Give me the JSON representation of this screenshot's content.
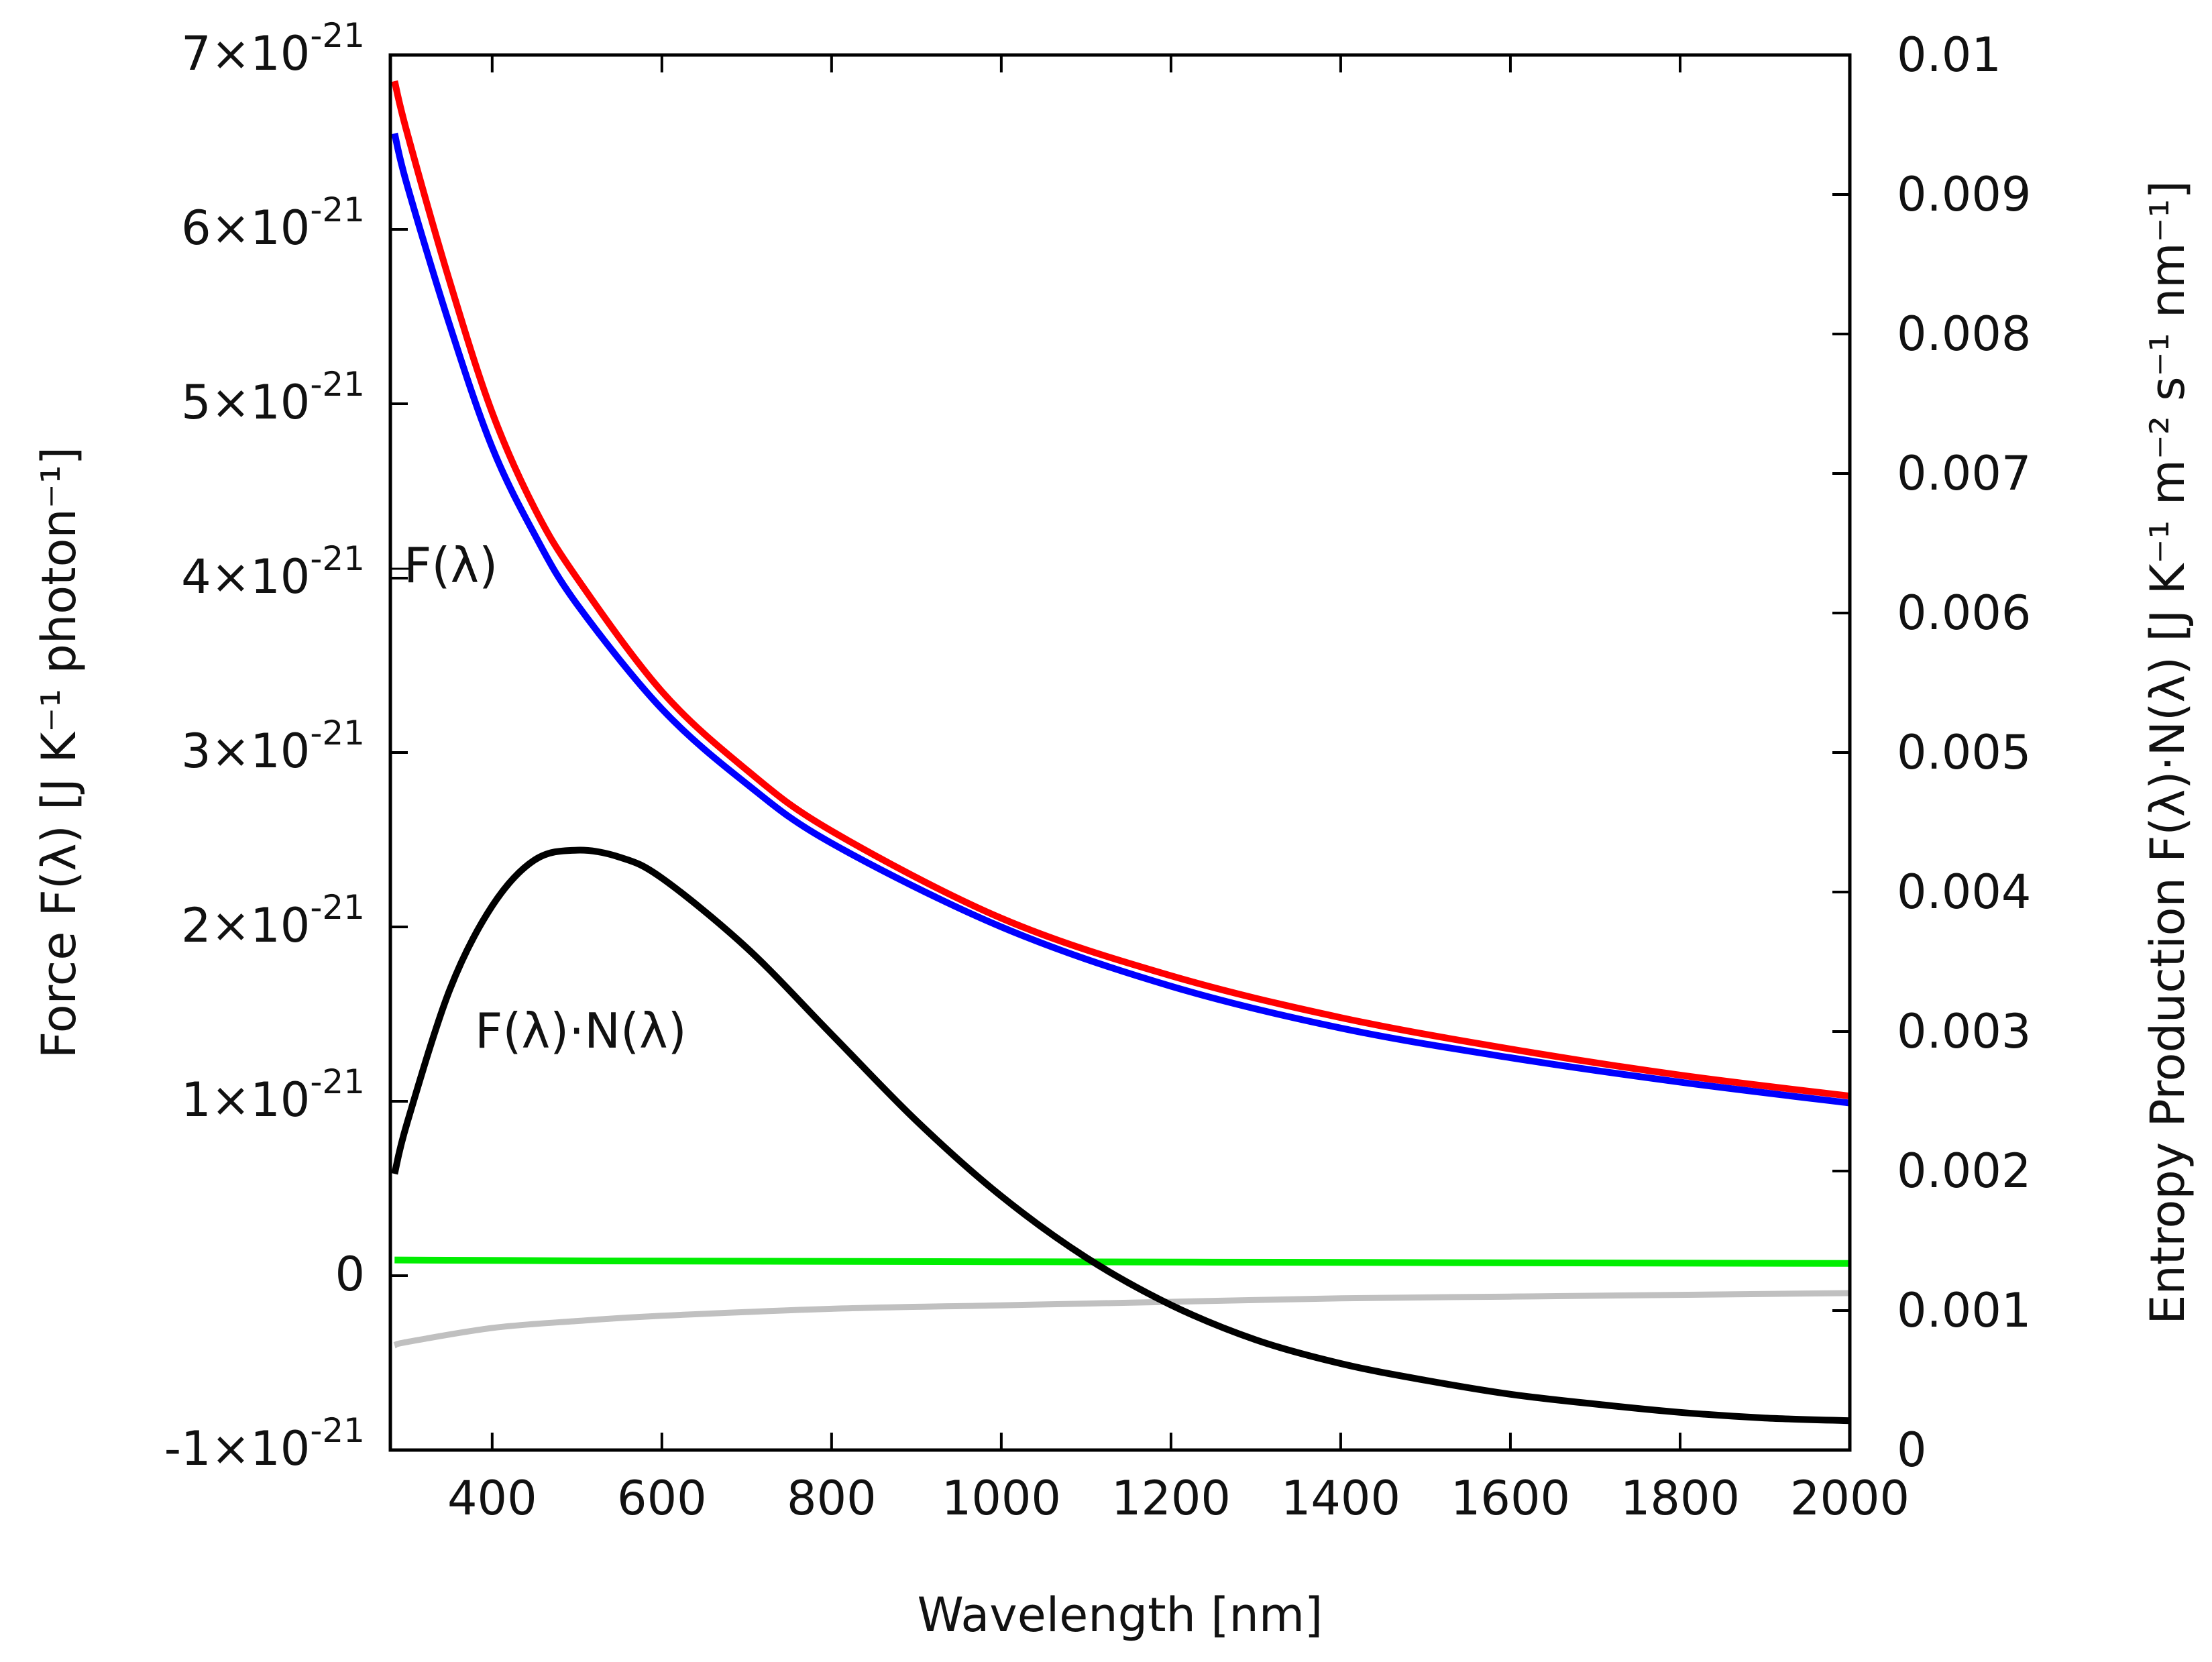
{
  "chart_data": {
    "type": "line",
    "title": "",
    "xlabel": "Wavelength [nm]",
    "ylabel_left": "Force F(λ) [J K⁻¹ photon⁻¹]",
    "ylabel_right": "Entropy Production F(λ)·N(λ) [J K⁻¹ m⁻² s⁻¹ nm⁻¹]",
    "xlim": [
      280,
      2000
    ],
    "ylim_left": [
      -1e-21,
      7e-21
    ],
    "ylim_right": [
      0,
      0.01
    ],
    "grid": false,
    "x_ticks": [
      {
        "value": 400,
        "label": "400"
      },
      {
        "value": 600,
        "label": "600"
      },
      {
        "value": 800,
        "label": "800"
      },
      {
        "value": 1000,
        "label": "1000"
      },
      {
        "value": 1200,
        "label": "1200"
      },
      {
        "value": 1400,
        "label": "1400"
      },
      {
        "value": 1600,
        "label": "1600"
      },
      {
        "value": 1800,
        "label": "1800"
      },
      {
        "value": 2000,
        "label": "2000"
      }
    ],
    "y_ticks_left": [
      {
        "value": -1e-21,
        "mantissa": "-1×10",
        "exp": "-21"
      },
      {
        "value": 0,
        "mantissa": "0",
        "exp": ""
      },
      {
        "value": 1e-21,
        "mantissa": "1×10",
        "exp": "-21"
      },
      {
        "value": 2e-21,
        "mantissa": "2×10",
        "exp": "-21"
      },
      {
        "value": 3e-21,
        "mantissa": "3×10",
        "exp": "-21"
      },
      {
        "value": 4e-21,
        "mantissa": "4×10",
        "exp": "-21"
      },
      {
        "value": 5e-21,
        "mantissa": "5×10",
        "exp": "-21"
      },
      {
        "value": 6e-21,
        "mantissa": "6×10",
        "exp": "-21"
      },
      {
        "value": 7e-21,
        "mantissa": "7×10",
        "exp": "-21"
      }
    ],
    "y_ticks_right": [
      {
        "value": 0,
        "label": "0"
      },
      {
        "value": 0.001,
        "label": "0.001"
      },
      {
        "value": 0.002,
        "label": "0.002"
      },
      {
        "value": 0.003,
        "label": "0.003"
      },
      {
        "value": 0.004,
        "label": "0.004"
      },
      {
        "value": 0.005,
        "label": "0.005"
      },
      {
        "value": 0.006,
        "label": "0.006"
      },
      {
        "value": 0.007,
        "label": "0.007"
      },
      {
        "value": 0.008,
        "label": "0.008"
      },
      {
        "value": 0.009,
        "label": "0.009"
      },
      {
        "value": 0.01,
        "label": "0.01"
      }
    ],
    "series": [
      {
        "name": "red",
        "axis": "left",
        "color": "#ff0000",
        "x": [
          285,
          300,
          350,
          400,
          450,
          500,
          600,
          700,
          800,
          1000,
          1200,
          1400,
          1600,
          1800,
          2000
        ],
        "y": [
          6.85e-21,
          6.55e-21,
          5.7e-21,
          4.95e-21,
          4.4e-21,
          4e-21,
          3.35e-21,
          2.9e-21,
          2.55e-21,
          2.05e-21,
          1.72e-21,
          1.48e-21,
          1.3e-21,
          1.15e-21,
          1.03e-21
        ]
      },
      {
        "name": "blue",
        "axis": "left",
        "color": "#0000ff",
        "x": [
          285,
          300,
          350,
          400,
          450,
          500,
          600,
          700,
          800,
          1000,
          1200,
          1400,
          1600,
          1800,
          2000
        ],
        "y": [
          6.55e-21,
          6.25e-21,
          5.45e-21,
          4.75e-21,
          4.25e-21,
          3.85e-21,
          3.25e-21,
          2.82e-21,
          2.48e-21,
          2e-21,
          1.66e-21,
          1.42e-21,
          1.25e-21,
          1.11e-21,
          9.9e-22
        ]
      },
      {
        "name": "green",
        "axis": "left",
        "color": "#00ee00",
        "x": [
          285,
          500,
          1000,
          1500,
          2000
        ],
        "y": [
          9e-23,
          8.5e-23,
          8e-23,
          7.5e-23,
          7e-23
        ]
      },
      {
        "name": "gray",
        "axis": "left",
        "color": "#c0c0c0",
        "x": [
          285,
          300,
          400,
          500,
          600,
          800,
          1000,
          1200,
          1400,
          1600,
          1800,
          2000
        ],
        "y": [
          -4e-22,
          -3.8e-22,
          -3e-22,
          -2.6e-22,
          -2.3e-22,
          -1.9e-22,
          -1.7e-22,
          -1.5e-22,
          -1.3e-22,
          -1.2e-22,
          -1.1e-22,
          -1e-22
        ]
      },
      {
        "name": "F(λ)·N(λ)",
        "axis": "right",
        "color": "#000000",
        "x": [
          285,
          300,
          350,
          400,
          450,
          500,
          550,
          600,
          700,
          800,
          900,
          1000,
          1100,
          1200,
          1300,
          1400,
          1500,
          1600,
          1700,
          1800,
          1900,
          2000
        ],
        "y": [
          0.00198,
          0.00235,
          0.0033,
          0.0039,
          0.00423,
          0.0043,
          0.00425,
          0.0041,
          0.0036,
          0.00298,
          0.00236,
          0.00182,
          0.00138,
          0.00104,
          0.00079,
          0.00062,
          0.0005,
          0.0004,
          0.00033,
          0.00027,
          0.00023,
          0.00021
        ]
      }
    ],
    "annotations": [
      {
        "text": "F(λ)",
        "x": 290,
        "y": 4e-21,
        "axis": "left"
      },
      {
        "text": "F(λ)·N(λ)",
        "x": 390,
        "y": 1.35e-21,
        "axis": "left"
      }
    ]
  }
}
